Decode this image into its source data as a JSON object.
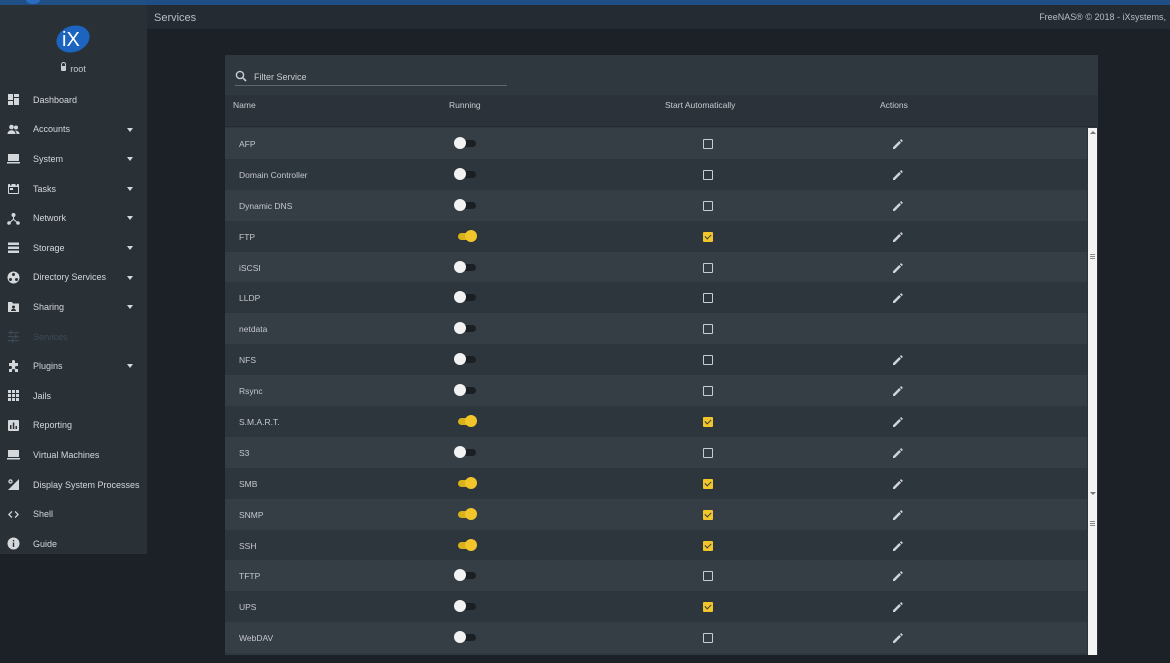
{
  "app": {
    "copyright": "FreeNAS® © 2018 - iXsystems,"
  },
  "header": {
    "breadcrumb": "Services"
  },
  "sidebar": {
    "user": "root",
    "items": [
      {
        "label": "Dashboard",
        "icon": "dashboard-icon",
        "has_submenu": false
      },
      {
        "label": "Accounts",
        "icon": "accounts-icon",
        "has_submenu": true
      },
      {
        "label": "System",
        "icon": "system-icon",
        "has_submenu": true
      },
      {
        "label": "Tasks",
        "icon": "tasks-icon",
        "has_submenu": true
      },
      {
        "label": "Network",
        "icon": "network-icon",
        "has_submenu": true
      },
      {
        "label": "Storage",
        "icon": "storage-icon",
        "has_submenu": true
      },
      {
        "label": "Directory Services",
        "icon": "directory-services-icon",
        "has_submenu": true
      },
      {
        "label": "Sharing",
        "icon": "sharing-icon",
        "has_submenu": true
      },
      {
        "label": "Services",
        "icon": "services-icon",
        "has_submenu": false,
        "active": true
      },
      {
        "label": "Plugins",
        "icon": "plugins-icon",
        "has_submenu": true
      },
      {
        "label": "Jails",
        "icon": "jails-icon",
        "has_submenu": false
      },
      {
        "label": "Reporting",
        "icon": "reporting-icon",
        "has_submenu": false
      },
      {
        "label": "Virtual Machines",
        "icon": "virtual-machines-icon",
        "has_submenu": false
      },
      {
        "label": "Display System Processes",
        "icon": "processes-icon",
        "has_submenu": false
      },
      {
        "label": "Shell",
        "icon": "shell-icon",
        "has_submenu": false
      },
      {
        "label": "Guide",
        "icon": "guide-icon",
        "has_submenu": false
      }
    ]
  },
  "search": {
    "placeholder": "Filter Service"
  },
  "table": {
    "columns": {
      "name": "Name",
      "running": "Running",
      "start_automatically": "Start Automatically",
      "actions": "Actions"
    },
    "rows": [
      {
        "name": "AFP",
        "running": false,
        "start_automatically": false,
        "editable": true
      },
      {
        "name": "Domain Controller",
        "running": false,
        "start_automatically": false,
        "editable": true
      },
      {
        "name": "Dynamic DNS",
        "running": false,
        "start_automatically": false,
        "editable": true
      },
      {
        "name": "FTP",
        "running": true,
        "start_automatically": true,
        "editable": true
      },
      {
        "name": "iSCSI",
        "running": false,
        "start_automatically": false,
        "editable": true
      },
      {
        "name": "LLDP",
        "running": false,
        "start_automatically": false,
        "editable": true
      },
      {
        "name": "netdata",
        "running": false,
        "start_automatically": false,
        "editable": false
      },
      {
        "name": "NFS",
        "running": false,
        "start_automatically": false,
        "editable": true
      },
      {
        "name": "Rsync",
        "running": false,
        "start_automatically": false,
        "editable": true
      },
      {
        "name": "S.M.A.R.T.",
        "running": true,
        "start_automatically": true,
        "editable": true
      },
      {
        "name": "S3",
        "running": false,
        "start_automatically": false,
        "editable": true
      },
      {
        "name": "SMB",
        "running": true,
        "start_automatically": true,
        "editable": true
      },
      {
        "name": "SNMP",
        "running": true,
        "start_automatically": true,
        "editable": true
      },
      {
        "name": "SSH",
        "running": true,
        "start_automatically": true,
        "editable": true
      },
      {
        "name": "TFTP",
        "running": false,
        "start_automatically": false,
        "editable": true
      },
      {
        "name": "UPS",
        "running": false,
        "start_automatically": true,
        "editable": true
      },
      {
        "name": "WebDAV",
        "running": false,
        "start_automatically": false,
        "editable": true
      }
    ]
  },
  "colors": {
    "accent": "#f2c62a",
    "sidebar_bg": "#293036",
    "panel_bg": "#30383f",
    "top_bar": "#1f4f84"
  }
}
